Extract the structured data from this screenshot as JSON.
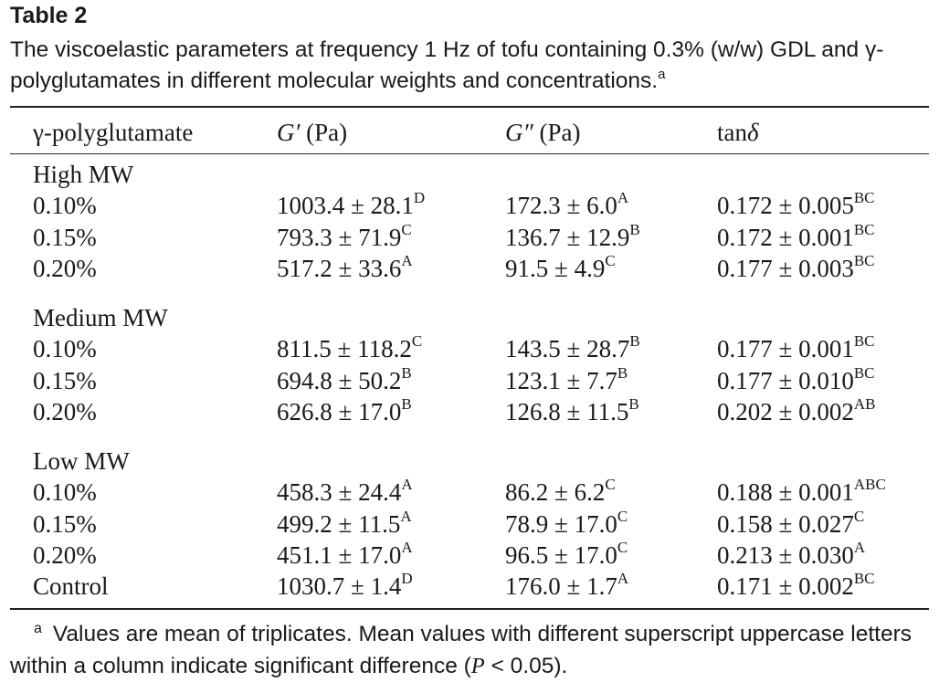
{
  "table_label": "Table 2",
  "caption": {
    "text": "The viscoelastic parameters at frequency 1 Hz of tofu containing 0.3% (w/w) GDL and γ-polyglutamates in different molecular weights and concentrations.",
    "mark": "a"
  },
  "headers": {
    "col1": "γ-polyglutamate",
    "col2_sym": "G′",
    "col2_unit": " (Pa)",
    "col3_sym": "G″",
    "col3_unit": " (Pa)",
    "col4_prefix": "tan",
    "col4_sym": "δ"
  },
  "groups": [
    {
      "label": "High MW",
      "rows": [
        {
          "conc": "0.10%",
          "g1": "1003.4 ± 28.1",
          "g1s": "D",
          "g2": "172.3 ± 6.0",
          "g2s": "A",
          "t": "0.172 ± 0.005",
          "ts": "BC"
        },
        {
          "conc": "0.15%",
          "g1": "793.3 ± 71.9",
          "g1s": "C",
          "g2": "136.7 ± 12.9",
          "g2s": "B",
          "t": "0.172 ± 0.001",
          "ts": "BC"
        },
        {
          "conc": "0.20%",
          "g1": "517.2 ± 33.6",
          "g1s": "A",
          "g2": "91.5 ± 4.9",
          "g2s": "C",
          "t": "0.177 ± 0.003",
          "ts": "BC"
        }
      ]
    },
    {
      "label": "Medium MW",
      "rows": [
        {
          "conc": "0.10%",
          "g1": "811.5 ± 118.2",
          "g1s": "C",
          "g2": "143.5 ± 28.7",
          "g2s": "B",
          "t": "0.177 ± 0.001",
          "ts": "BC"
        },
        {
          "conc": "0.15%",
          "g1": "694.8 ± 50.2",
          "g1s": "B",
          "g2": "123.1 ± 7.7",
          "g2s": "B",
          "t": "0.177 ± 0.010",
          "ts": "BC"
        },
        {
          "conc": "0.20%",
          "g1": "626.8 ± 17.0",
          "g1s": "B",
          "g2": "126.8 ± 11.5",
          "g2s": "B",
          "t": "0.202 ± 0.002",
          "ts": "AB"
        }
      ]
    },
    {
      "label": "Low MW",
      "rows": [
        {
          "conc": "0.10%",
          "g1": "458.3 ± 24.4",
          "g1s": "A",
          "g2": "86.2 ± 6.2",
          "g2s": "C",
          "t": "0.188 ± 0.001",
          "ts": "ABC"
        },
        {
          "conc": "0.15%",
          "g1": "499.2 ± 11.5",
          "g1s": "A",
          "g2": "78.9 ± 17.0",
          "g2s": "C",
          "t": "0.158 ± 0.027",
          "ts": "C"
        },
        {
          "conc": "0.20%",
          "g1": "451.1 ± 17.0",
          "g1s": "A",
          "g2": "96.5 ± 17.0",
          "g2s": "C",
          "t": "0.213 ± 0.030",
          "ts": "A"
        },
        {
          "conc": "Control",
          "g1": "1030.7 ± 1.4",
          "g1s": "D",
          "g2": "176.0 ± 1.7",
          "g2s": "A",
          "t": "0.171 ± 0.002",
          "ts": "BC"
        }
      ]
    }
  ],
  "footnote": {
    "mark": "a",
    "text_before": "Values are mean of triplicates. Mean values with different superscript uppercase letters within a column indicate significant difference (",
    "p_symbol": "P",
    "text_after": " < 0.05)."
  }
}
